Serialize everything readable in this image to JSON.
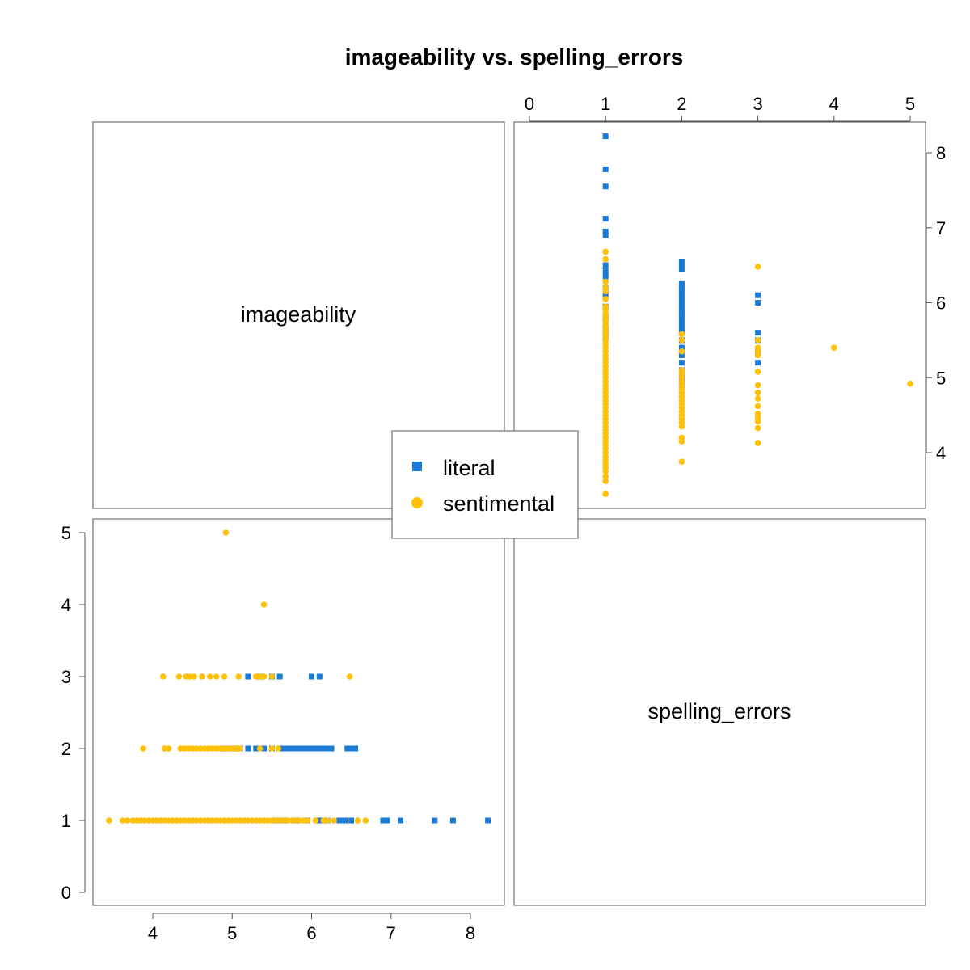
{
  "chart_data": {
    "type": "scatter",
    "title": "imageability vs. spelling_errors",
    "variables": [
      "imageability",
      "spelling_errors"
    ],
    "imageability_ticks": [
      "4",
      "5",
      "6",
      "7",
      "8"
    ],
    "spelling_errors_ticks": [
      "0",
      "1",
      "2",
      "3",
      "4",
      "5"
    ],
    "imageability_range": [
      3.3,
      8.4
    ],
    "spelling_errors_range": [
      -0.2,
      5.3
    ],
    "legend": {
      "placement": "center",
      "entries": [
        "literal",
        "sentimental"
      ]
    },
    "colors": {
      "literal": "#1a7bd6",
      "sentimental": "#ffc107",
      "frame": "#555555"
    },
    "series": [
      {
        "name": "literal",
        "marker": "square",
        "points": [
          [
            8.22,
            1
          ],
          [
            7.78,
            1
          ],
          [
            7.55,
            1
          ],
          [
            7.12,
            1
          ],
          [
            6.95,
            1
          ],
          [
            6.9,
            1
          ],
          [
            6.5,
            1
          ],
          [
            6.42,
            1
          ],
          [
            6.35,
            1
          ],
          [
            6.2,
            1
          ],
          [
            6.1,
            1
          ],
          [
            5.95,
            1
          ],
          [
            5.8,
            1
          ],
          [
            5.65,
            1
          ],
          [
            5.55,
            1
          ],
          [
            6.55,
            2
          ],
          [
            6.5,
            2
          ],
          [
            6.45,
            2
          ],
          [
            6.25,
            2
          ],
          [
            6.2,
            2
          ],
          [
            6.15,
            2
          ],
          [
            6.1,
            2
          ],
          [
            6.05,
            2
          ],
          [
            6.0,
            2
          ],
          [
            5.95,
            2
          ],
          [
            5.9,
            2
          ],
          [
            5.85,
            2
          ],
          [
            5.8,
            2
          ],
          [
            5.75,
            2
          ],
          [
            5.7,
            2
          ],
          [
            5.65,
            2
          ],
          [
            5.6,
            2
          ],
          [
            5.5,
            2
          ],
          [
            5.4,
            2
          ],
          [
            5.3,
            2
          ],
          [
            5.2,
            2
          ],
          [
            5.1,
            2
          ],
          [
            5.0,
            2
          ],
          [
            4.9,
            2
          ],
          [
            6.1,
            3
          ],
          [
            6.0,
            3
          ],
          [
            5.6,
            3
          ],
          [
            5.5,
            3
          ],
          [
            5.35,
            3
          ],
          [
            5.2,
            3
          ]
        ]
      },
      {
        "name": "sentimental",
        "marker": "circle",
        "points": [
          [
            3.45,
            1
          ],
          [
            3.62,
            1
          ],
          [
            3.68,
            1
          ],
          [
            3.75,
            1
          ],
          [
            3.8,
            1
          ],
          [
            3.85,
            1
          ],
          [
            3.9,
            1
          ],
          [
            3.95,
            1
          ],
          [
            4.0,
            1
          ],
          [
            4.05,
            1
          ],
          [
            4.1,
            1
          ],
          [
            4.15,
            1
          ],
          [
            4.2,
            1
          ],
          [
            4.25,
            1
          ],
          [
            4.3,
            1
          ],
          [
            4.35,
            1
          ],
          [
            4.4,
            1
          ],
          [
            4.45,
            1
          ],
          [
            4.5,
            1
          ],
          [
            4.55,
            1
          ],
          [
            4.6,
            1
          ],
          [
            4.65,
            1
          ],
          [
            4.7,
            1
          ],
          [
            4.75,
            1
          ],
          [
            4.8,
            1
          ],
          [
            4.85,
            1
          ],
          [
            4.9,
            1
          ],
          [
            4.95,
            1
          ],
          [
            5.0,
            1
          ],
          [
            5.05,
            1
          ],
          [
            5.1,
            1
          ],
          [
            5.15,
            1
          ],
          [
            5.2,
            1
          ],
          [
            5.25,
            1
          ],
          [
            5.3,
            1
          ],
          [
            5.35,
            1
          ],
          [
            5.4,
            1
          ],
          [
            5.45,
            1
          ],
          [
            5.5,
            1
          ],
          [
            5.55,
            1
          ],
          [
            5.6,
            1
          ],
          [
            5.65,
            1
          ],
          [
            5.7,
            1
          ],
          [
            5.75,
            1
          ],
          [
            5.8,
            1
          ],
          [
            5.85,
            1
          ],
          [
            5.9,
            1
          ],
          [
            5.95,
            1
          ],
          [
            6.05,
            1
          ],
          [
            6.15,
            1
          ],
          [
            6.2,
            1
          ],
          [
            6.28,
            1
          ],
          [
            6.58,
            1
          ],
          [
            6.68,
            1
          ],
          [
            3.88,
            2
          ],
          [
            4.15,
            2
          ],
          [
            4.2,
            2
          ],
          [
            4.35,
            2
          ],
          [
            4.4,
            2
          ],
          [
            4.45,
            2
          ],
          [
            4.5,
            2
          ],
          [
            4.55,
            2
          ],
          [
            4.6,
            2
          ],
          [
            4.65,
            2
          ],
          [
            4.7,
            2
          ],
          [
            4.75,
            2
          ],
          [
            4.8,
            2
          ],
          [
            4.85,
            2
          ],
          [
            4.9,
            2
          ],
          [
            4.95,
            2
          ],
          [
            5.0,
            2
          ],
          [
            5.05,
            2
          ],
          [
            5.1,
            2
          ],
          [
            5.35,
            2
          ],
          [
            5.5,
            2
          ],
          [
            5.58,
            2
          ],
          [
            4.13,
            3
          ],
          [
            4.33,
            3
          ],
          [
            4.42,
            3
          ],
          [
            4.47,
            3
          ],
          [
            4.52,
            3
          ],
          [
            4.62,
            3
          ],
          [
            4.72,
            3
          ],
          [
            4.8,
            3
          ],
          [
            4.9,
            3
          ],
          [
            5.08,
            3
          ],
          [
            5.3,
            3
          ],
          [
            5.35,
            3
          ],
          [
            5.4,
            3
          ],
          [
            5.5,
            3
          ],
          [
            6.48,
            3
          ],
          [
            5.4,
            4
          ],
          [
            4.92,
            5
          ]
        ]
      }
    ]
  }
}
